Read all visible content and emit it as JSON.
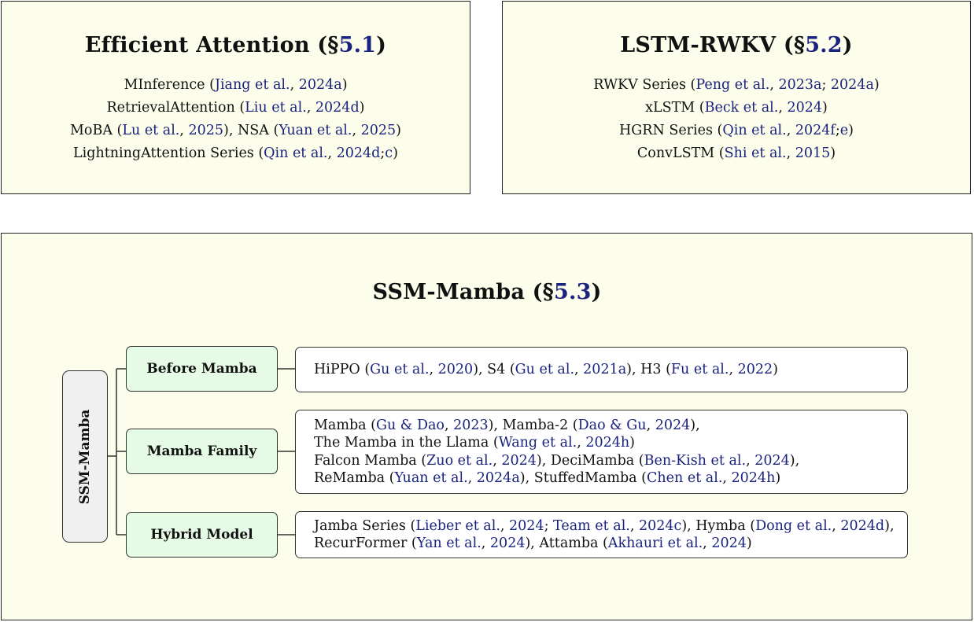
{
  "panels": {
    "efficient_attention": {
      "title_text": "Efficient Attention (§",
      "section": "5.1",
      "title_close": ")",
      "entries": [
        [
          {
            "t": "MInference ("
          },
          {
            "c": "Jiang et al."
          },
          {
            "t": ", "
          },
          {
            "c": "2024a"
          },
          {
            "t": ")"
          }
        ],
        [
          {
            "t": "RetrievalAttention ("
          },
          {
            "c": "Liu et al."
          },
          {
            "t": ", "
          },
          {
            "c": "2024d"
          },
          {
            "t": ")"
          }
        ],
        [
          {
            "t": "MoBA ("
          },
          {
            "c": "Lu et al."
          },
          {
            "t": ", "
          },
          {
            "c": "2025"
          },
          {
            "t": "), NSA ("
          },
          {
            "c": "Yuan et al."
          },
          {
            "t": ", "
          },
          {
            "c": "2025"
          },
          {
            "t": ")"
          }
        ],
        [
          {
            "t": "LightningAttention Series ("
          },
          {
            "c": "Qin et al."
          },
          {
            "t": ", "
          },
          {
            "c": "2024d"
          },
          {
            "t": ";"
          },
          {
            "c": "c"
          },
          {
            "t": ")"
          }
        ]
      ]
    },
    "lstm_rwkv": {
      "title_text": "LSTM-RWKV (§",
      "section": "5.2",
      "title_close": ")",
      "entries": [
        [
          {
            "t": "RWKV Series ("
          },
          {
            "c": "Peng et al."
          },
          {
            "t": ", "
          },
          {
            "c": "2023a"
          },
          {
            "t": "; "
          },
          {
            "c": "2024a"
          },
          {
            "t": ")"
          }
        ],
        [
          {
            "t": "xLSTM ("
          },
          {
            "c": "Beck et al."
          },
          {
            "t": ", "
          },
          {
            "c": "2024"
          },
          {
            "t": ")"
          }
        ],
        [
          {
            "t": "HGRN Series ("
          },
          {
            "c": "Qin et al."
          },
          {
            "t": ", "
          },
          {
            "c": "2024f"
          },
          {
            "t": ";"
          },
          {
            "c": "e"
          },
          {
            "t": ")"
          }
        ],
        [
          {
            "t": "ConvLSTM ("
          },
          {
            "c": "Shi et al."
          },
          {
            "t": ", "
          },
          {
            "c": "2015"
          },
          {
            "t": ")"
          }
        ]
      ]
    },
    "ssm_mamba": {
      "title_text": "SSM-Mamba (§",
      "section": "5.3",
      "title_close": ")",
      "root_label": "SSM-Mamba",
      "categories": [
        {
          "label": "Before Mamba",
          "lines": [
            [
              {
                "t": "HiPPO ("
              },
              {
                "c": "Gu et al."
              },
              {
                "t": ", "
              },
              {
                "c": "2020"
              },
              {
                "t": "), S4 ("
              },
              {
                "c": "Gu et al."
              },
              {
                "t": ", "
              },
              {
                "c": "2021a"
              },
              {
                "t": "), H3 ("
              },
              {
                "c": "Fu et al."
              },
              {
                "t": ", "
              },
              {
                "c": "2022"
              },
              {
                "t": ")"
              }
            ]
          ]
        },
        {
          "label": "Mamba Family",
          "lines": [
            [
              {
                "t": "Mamba ("
              },
              {
                "c": "Gu & Dao"
              },
              {
                "t": ", "
              },
              {
                "c": "2023"
              },
              {
                "t": "), Mamba-2 ("
              },
              {
                "c": "Dao & Gu"
              },
              {
                "t": ", "
              },
              {
                "c": "2024"
              },
              {
                "t": "),"
              }
            ],
            [
              {
                "t": "The Mamba in the Llama ("
              },
              {
                "c": "Wang et al."
              },
              {
                "t": ", "
              },
              {
                "c": "2024h"
              },
              {
                "t": ")"
              }
            ],
            [
              {
                "t": "Falcon Mamba ("
              },
              {
                "c": "Zuo et al."
              },
              {
                "t": ", "
              },
              {
                "c": "2024"
              },
              {
                "t": "), DeciMamba ("
              },
              {
                "c": "Ben-Kish et al."
              },
              {
                "t": ", "
              },
              {
                "c": "2024"
              },
              {
                "t": "),"
              }
            ],
            [
              {
                "t": "ReMamba ("
              },
              {
                "c": "Yuan et al."
              },
              {
                "t": ", "
              },
              {
                "c": "2024a"
              },
              {
                "t": "), StuffedMamba ("
              },
              {
                "c": "Chen et al."
              },
              {
                "t": ", "
              },
              {
                "c": "2024h"
              },
              {
                "t": ")"
              }
            ]
          ]
        },
        {
          "label": "Hybrid Model",
          "lines": [
            [
              {
                "t": "Jamba Series ("
              },
              {
                "c": "Lieber et al."
              },
              {
                "t": ", "
              },
              {
                "c": "2024"
              },
              {
                "t": "; "
              },
              {
                "c": "Team et al."
              },
              {
                "t": ", "
              },
              {
                "c": "2024c"
              },
              {
                "t": "), Hymba ("
              },
              {
                "c": "Dong et al."
              },
              {
                "t": ", "
              },
              {
                "c": "2024d"
              },
              {
                "t": "),"
              }
            ],
            [
              {
                "t": "RecurFormer ("
              },
              {
                "c": "Yan et al."
              },
              {
                "t": ", "
              },
              {
                "c": "2024"
              },
              {
                "t": "), Attamba ("
              },
              {
                "c": "Akhauri et al."
              },
              {
                "t": ", "
              },
              {
                "c": "2024"
              },
              {
                "t": ")"
              }
            ]
          ]
        }
      ]
    }
  },
  "colors": {
    "panel_background": "#fdfdec",
    "category_background": "#e6fbe6",
    "root_background": "#f0f0f0",
    "citation_link": "#1a237e",
    "border": "#222222"
  }
}
